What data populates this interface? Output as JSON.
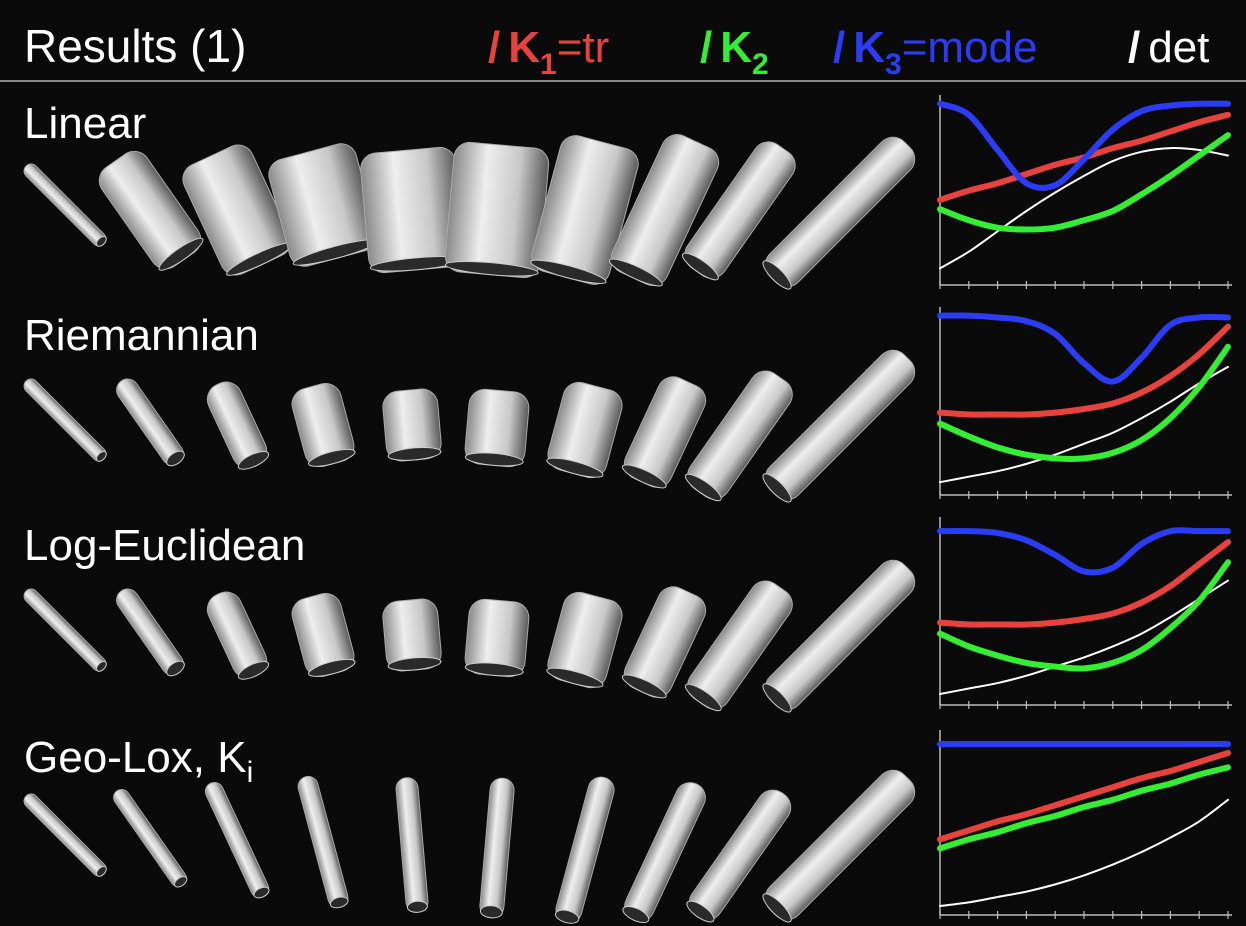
{
  "header": {
    "title": "Results (1)",
    "legend": [
      {
        "slash": "/",
        "text": "K",
        "sub": "1",
        "suffix": "=tr",
        "color": "#e8423f"
      },
      {
        "slash": "/",
        "text": "K",
        "sub": "2",
        "color": "#33ee33"
      },
      {
        "slash": "/",
        "text": "K",
        "sub": "3",
        "suffix": "=mode",
        "color": "#2a3cf5"
      },
      {
        "slash": "/",
        "text": "det",
        "color": "#ffffff"
      }
    ]
  },
  "rows": [
    {
      "label": "Linear",
      "chart": {
        "type": "line",
        "x": [
          0,
          1,
          2,
          3,
          4,
          5,
          6,
          7,
          8,
          9,
          10
        ],
        "xlim": [
          0,
          10
        ],
        "ylim": [
          0,
          1
        ],
        "xticks": [
          0,
          1,
          2,
          3,
          4,
          5,
          6,
          7,
          8,
          9,
          10
        ],
        "series": [
          {
            "color": "#2a3cf5",
            "values": [
              0.98,
              0.92,
              0.73,
              0.55,
              0.54,
              0.68,
              0.84,
              0.94,
              0.97,
              0.98,
              0.98
            ]
          },
          {
            "color": "#e8423f",
            "values": [
              0.46,
              0.51,
              0.55,
              0.6,
              0.65,
              0.69,
              0.74,
              0.78,
              0.83,
              0.88,
              0.92
            ]
          },
          {
            "color": "#33ee33",
            "values": [
              0.41,
              0.35,
              0.31,
              0.3,
              0.31,
              0.35,
              0.4,
              0.49,
              0.59,
              0.7,
              0.81
            ]
          },
          {
            "color": "#ffffff",
            "values": [
              0.09,
              0.18,
              0.29,
              0.4,
              0.5,
              0.59,
              0.67,
              0.72,
              0.74,
              0.73,
              0.7
            ]
          }
        ]
      }
    },
    {
      "label": "Riemannian",
      "chart": {
        "type": "line",
        "x": [
          0,
          1,
          2,
          3,
          4,
          5,
          6,
          7,
          8,
          9,
          10
        ],
        "xlim": [
          0,
          10
        ],
        "ylim": [
          0,
          1
        ],
        "xticks": [
          0,
          1,
          2,
          3,
          4,
          5,
          6,
          7,
          8,
          9,
          10
        ],
        "series": [
          {
            "color": "#2a3cf5",
            "values": [
              0.98,
              0.98,
              0.97,
              0.95,
              0.88,
              0.72,
              0.62,
              0.75,
              0.93,
              0.97,
              0.97
            ]
          },
          {
            "color": "#e8423f",
            "values": [
              0.45,
              0.44,
              0.44,
              0.44,
              0.45,
              0.47,
              0.5,
              0.56,
              0.65,
              0.77,
              0.92
            ]
          },
          {
            "color": "#33ee33",
            "values": [
              0.39,
              0.32,
              0.26,
              0.22,
              0.2,
              0.2,
              0.23,
              0.3,
              0.42,
              0.59,
              0.81
            ]
          },
          {
            "color": "#ffffff",
            "values": [
              0.07,
              0.1,
              0.13,
              0.17,
              0.22,
              0.28,
              0.34,
              0.42,
              0.51,
              0.61,
              0.7
            ]
          }
        ]
      }
    },
    {
      "label": "Log-Euclidean",
      "chart": {
        "type": "line",
        "x": [
          0,
          1,
          2,
          3,
          4,
          5,
          6,
          7,
          8,
          9,
          10
        ],
        "xlim": [
          0,
          10
        ],
        "ylim": [
          0,
          1
        ],
        "xticks": [
          0,
          1,
          2,
          3,
          4,
          5,
          6,
          7,
          8,
          9,
          10
        ],
        "series": [
          {
            "color": "#2a3cf5",
            "values": [
              0.95,
              0.95,
              0.94,
              0.9,
              0.82,
              0.73,
              0.75,
              0.88,
              0.95,
              0.95,
              0.95
            ]
          },
          {
            "color": "#e8423f",
            "values": [
              0.45,
              0.44,
              0.44,
              0.44,
              0.45,
              0.47,
              0.5,
              0.56,
              0.65,
              0.77,
              0.89
            ]
          },
          {
            "color": "#33ee33",
            "values": [
              0.39,
              0.32,
              0.27,
              0.23,
              0.21,
              0.2,
              0.23,
              0.3,
              0.42,
              0.57,
              0.78
            ]
          },
          {
            "color": "#ffffff",
            "values": [
              0.06,
              0.09,
              0.12,
              0.16,
              0.21,
              0.26,
              0.32,
              0.39,
              0.48,
              0.58,
              0.68
            ]
          }
        ]
      }
    },
    {
      "label": "Geo-Lox, K",
      "label_sub": "i",
      "chart": {
        "type": "line",
        "x": [
          0,
          1,
          2,
          3,
          4,
          5,
          6,
          7,
          8,
          9,
          10
        ],
        "xlim": [
          0,
          10
        ],
        "ylim": [
          0,
          1
        ],
        "xticks": [
          0,
          1,
          2,
          3,
          4,
          5,
          6,
          7,
          8,
          9,
          10
        ],
        "series": [
          {
            "color": "#2a3cf5",
            "values": [
              0.95,
              0.95,
              0.95,
              0.95,
              0.95,
              0.95,
              0.95,
              0.95,
              0.95,
              0.95,
              0.95
            ]
          },
          {
            "color": "#e8423f",
            "values": [
              0.42,
              0.47,
              0.52,
              0.56,
              0.61,
              0.66,
              0.71,
              0.76,
              0.8,
              0.85,
              0.9
            ]
          },
          {
            "color": "#33ee33",
            "values": [
              0.37,
              0.42,
              0.46,
              0.51,
              0.55,
              0.6,
              0.64,
              0.69,
              0.73,
              0.78,
              0.82
            ]
          },
          {
            "color": "#ffffff",
            "values": [
              0.05,
              0.07,
              0.1,
              0.13,
              0.17,
              0.22,
              0.28,
              0.35,
              0.43,
              0.52,
              0.64
            ]
          }
        ]
      }
    }
  ]
}
